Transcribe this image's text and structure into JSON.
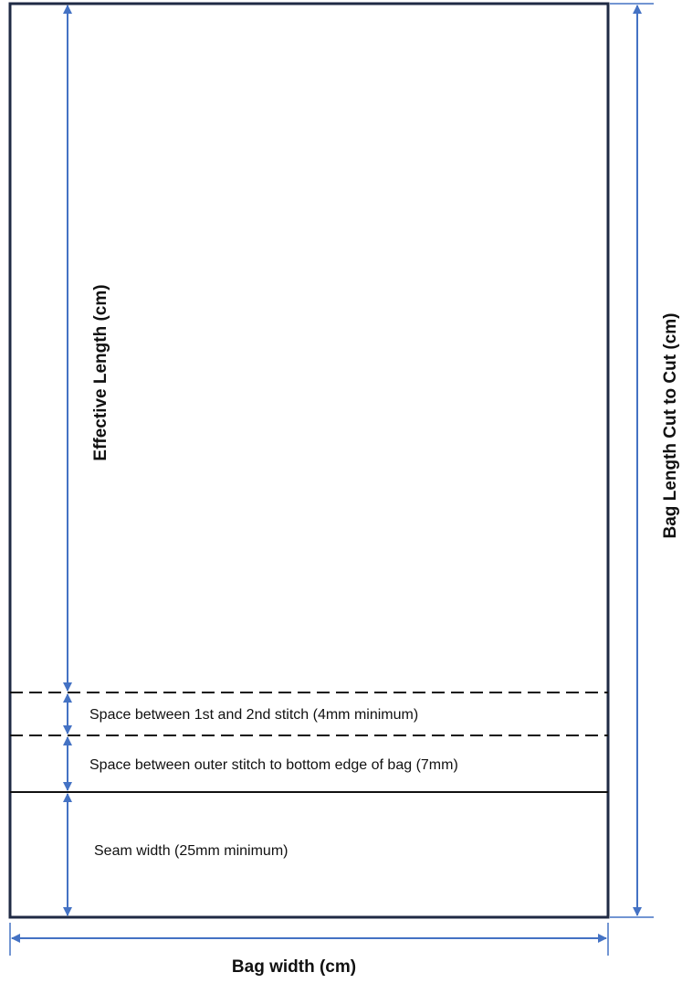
{
  "labels": {
    "effective_length": "Effective Length (cm)",
    "bag_length": "Bag Length Cut to Cut (cm)",
    "bag_width": "Bag width (cm)",
    "stitch_space": "Space between 1st and 2nd stitch (4mm minimum)",
    "outer_stitch_space": "Space between outer stitch to bottom edge of bag (7mm)",
    "seam_width": "Seam width (25mm minimum)"
  },
  "colors": {
    "outline": "#1f2a44",
    "arrow": "#4472c4",
    "text": "#111111"
  }
}
